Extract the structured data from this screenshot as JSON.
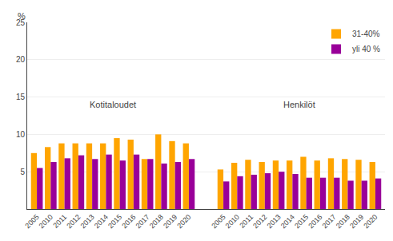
{
  "chart_data": {
    "type": "bar",
    "ylabel": "%",
    "categories": [
      "2005",
      "2010",
      "2011",
      "2012",
      "2013",
      "2014",
      "2015",
      "2016",
      "2017",
      "2018",
      "2019",
      "2020",
      "2005",
      "2010",
      "2011",
      "2012",
      "2013",
      "2014",
      "2015",
      "2016",
      "2017",
      "2018",
      "2019",
      "2020"
    ],
    "series": [
      {
        "name": "31-40%",
        "color": "#FFA500",
        "values": [
          7.5,
          8.3,
          8.8,
          8.8,
          8.8,
          8.8,
          9.5,
          9.3,
          6.7,
          10.0,
          9.1,
          8.8,
          5.3,
          6.2,
          6.6,
          6.3,
          6.5,
          6.5,
          7.0,
          6.5,
          6.8,
          6.7,
          6.6,
          6.3
        ]
      },
      {
        "name": "yli 40 %",
        "color": "#990099",
        "values": [
          5.5,
          6.3,
          6.8,
          7.2,
          6.7,
          7.3,
          6.5,
          7.3,
          6.7,
          6.1,
          6.3,
          6.7,
          3.7,
          4.4,
          4.6,
          4.8,
          5.0,
          4.7,
          4.2,
          4.2,
          4.2,
          3.8,
          3.8,
          4.1
        ]
      }
    ],
    "annotations": [
      "Kotitaloudet",
      "Henkilöt"
    ],
    "ylim": [
      0,
      25
    ],
    "yticks": [
      5,
      10,
      15,
      20,
      25
    ],
    "grid": true,
    "legend": "upper right"
  }
}
